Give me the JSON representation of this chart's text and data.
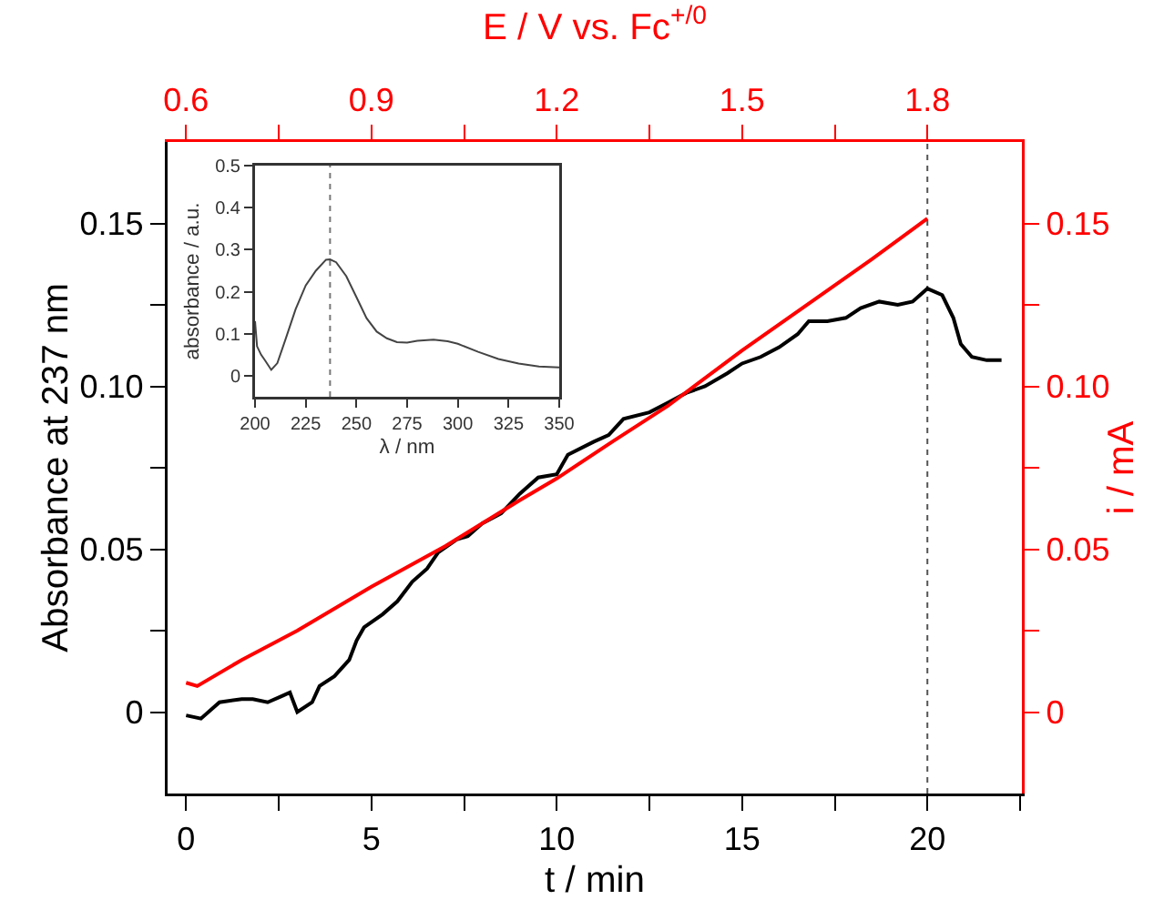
{
  "chart_data": [
    {
      "type": "line",
      "xlabel": "t / min",
      "ylabel": "Absorbance at 237 nm",
      "x2label": "E / V vs. Fc$^{+/0}$",
      "y2label": "i / mA",
      "xlim": [
        -0.5,
        22.55
      ],
      "xticks": [
        0,
        {
          "value": 2.5,
          "label": null
        },
        5,
        {
          "value": 7.5,
          "label": null
        },
        10,
        {
          "value": 12.5,
          "label": null
        },
        15,
        {
          "value": 17.5,
          "label": null
        },
        20,
        {
          "value": 22.5,
          "label": null
        }
      ],
      "x2lim": [
        0.57,
        1.953
      ],
      "x2ticks": [
        {
          "value": 0.6,
          "label": "0.6"
        },
        {
          "value": 0.75,
          "label": null
        },
        {
          "value": 0.9,
          "label": "0.9"
        },
        {
          "value": 1.05,
          "label": null
        },
        {
          "value": 1.2,
          "label": "1.2"
        },
        {
          "value": 1.35,
          "label": null
        },
        {
          "value": 1.5,
          "label": "1.5"
        },
        {
          "value": 1.65,
          "label": null
        },
        {
          "value": 1.8,
          "label": "1.8"
        }
      ],
      "ylim": [
        -0.025,
        0.175
      ],
      "yticks": [
        0,
        {
          "value": 0.025,
          "label": null
        },
        {
          "value": 0.05,
          "label": "0.05"
        },
        {
          "value": 0.075,
          "label": null
        },
        {
          "value": 0.1,
          "label": "0.10"
        },
        {
          "value": 0.125,
          "label": null
        },
        {
          "value": 0.15,
          "label": "0.15"
        }
      ],
      "y2lim": [
        -0.025,
        0.175
      ],
      "y2ticks": [
        0,
        {
          "value": 0.025,
          "label": null
        },
        {
          "value": 0.05,
          "label": "0.05"
        },
        {
          "value": 0.075,
          "label": null
        },
        {
          "value": 0.1,
          "label": "0.10"
        },
        {
          "value": 0.125,
          "label": null
        },
        {
          "value": 0.15,
          "label": "0.15"
        }
      ],
      "grid": false,
      "line_style": "solid",
      "ref_lines": [
        {
          "axis": "x",
          "value": 20,
          "color": "#555555",
          "line_style": "dotted"
        }
      ],
      "series": [
        {
          "color": "#000000",
          "x": [
            0,
            0.4,
            0.9,
            1.5,
            1.8,
            2.2,
            2.6,
            2.8,
            3.0,
            3.4,
            3.6,
            4.0,
            4.4,
            4.6,
            4.8,
            5.3,
            5.7,
            6.1,
            6.5,
            6.8,
            7.3,
            7.6,
            8.0,
            8.5,
            9.0,
            9.5,
            10.0,
            10.3,
            11.0,
            11.4,
            11.8,
            12.5,
            13.0,
            13.5,
            14.0,
            14.6,
            15.0,
            15.5,
            16.0,
            16.5,
            16.8,
            17.3,
            17.8,
            18.2,
            18.7,
            19.2,
            19.6,
            20.0,
            20.4,
            20.7,
            20.9,
            21.2,
            21.6,
            22.0
          ],
          "values": [
            -0.001,
            -0.002,
            0.003,
            0.004,
            0.004,
            0.003,
            0.005,
            0.006,
            0.0,
            0.003,
            0.008,
            0.011,
            0.016,
            0.022,
            0.026,
            0.03,
            0.034,
            0.04,
            0.044,
            0.049,
            0.053,
            0.054,
            0.058,
            0.061,
            0.067,
            0.072,
            0.073,
            0.079,
            0.083,
            0.085,
            0.09,
            0.092,
            0.095,
            0.098,
            0.1,
            0.104,
            0.107,
            0.109,
            0.112,
            0.116,
            0.12,
            0.12,
            0.121,
            0.124,
            0.126,
            0.125,
            0.126,
            0.13,
            0.128,
            0.121,
            0.113,
            0.109,
            0.108,
            0.108
          ]
        },
        {
          "color": "#ff0000",
          "axis": "y2",
          "x": [
            0,
            0.3,
            1.5,
            3,
            5,
            7,
            9,
            10,
            11.5,
            13,
            15,
            17,
            18.5,
            20
          ],
          "values": [
            0.009,
            0.008,
            0.016,
            0.025,
            0.0385,
            0.051,
            0.065,
            0.0717,
            0.083,
            0.094,
            0.111,
            0.127,
            0.139,
            0.1515
          ]
        }
      ]
    },
    {
      "type": "line",
      "xlabel": "λ / nm",
      "ylabel": "absorbance / a.u.",
      "xlim": [
        200,
        350
      ],
      "xticks": [
        200,
        225,
        250,
        275,
        300,
        325,
        350
      ],
      "ylim": [
        -0.05,
        0.5
      ],
      "yticks": [
        0,
        0.1,
        0.2,
        0.3,
        0.4,
        0.5
      ],
      "grid": false,
      "line_style": "solid",
      "ref_lines": [
        {
          "axis": "x",
          "value": 237,
          "color": "#777777",
          "line_style": "dotted"
        }
      ],
      "series": [
        {
          "color": "#444444",
          "x": [
            200,
            201,
            203,
            205,
            208,
            211,
            215,
            220,
            225,
            230,
            235,
            237,
            240,
            245,
            250,
            255,
            260,
            265,
            270,
            275,
            280,
            288,
            295,
            300,
            310,
            320,
            330,
            340,
            350
          ],
          "values": [
            0.13,
            0.07,
            0.05,
            0.036,
            0.014,
            0.03,
            0.086,
            0.158,
            0.215,
            0.25,
            0.276,
            0.277,
            0.27,
            0.237,
            0.187,
            0.137,
            0.105,
            0.089,
            0.08,
            0.079,
            0.083,
            0.086,
            0.082,
            0.076,
            0.057,
            0.04,
            0.029,
            0.022,
            0.02
          ]
        }
      ]
    }
  ]
}
